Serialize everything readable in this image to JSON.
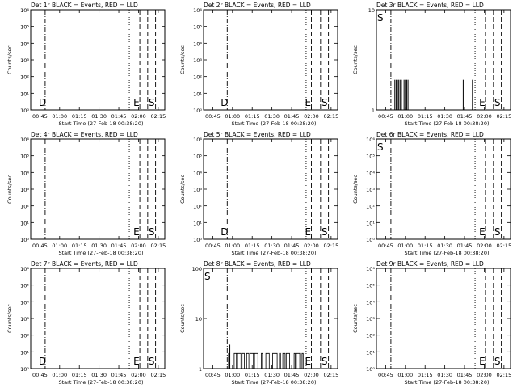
{
  "page": {
    "background": "#ffffff",
    "foreground": "#000000",
    "lld_color": "#ff0000"
  },
  "chart_data": [
    {
      "type": "line",
      "title": "Det 1r BLACK = Events, RED = LLD",
      "xlabel": "Start Time (27-Feb-18 00:38:20)",
      "ylabel": "Counts/sec",
      "x_ticks": [
        "00:45",
        "01:00",
        "01:15",
        "01:30",
        "01:45",
        "02:00",
        "02:15"
      ],
      "xlim": [
        "00:38",
        "02:20"
      ],
      "yscale": "log",
      "ylim": [
        1,
        1000000
      ],
      "y_ticks": [
        "10⁰",
        "10¹",
        "10²",
        "10³",
        "10⁴",
        "10⁵",
        "10⁶"
      ],
      "markers": [
        {
          "label": "D",
          "x": "00:49",
          "style": "dashdot"
        },
        {
          "label": "",
          "x": "01:53",
          "style": "dotted"
        },
        {
          "label": "E",
          "x": "02:01",
          "style": "dashed"
        },
        {
          "label": "S",
          "x": "02:07",
          "style": "dashed"
        },
        {
          "label": "",
          "x": "02:13",
          "style": "dashed"
        }
      ],
      "series": []
    },
    {
      "type": "line",
      "title": "Det 2r BLACK = Events, RED = LLD",
      "xlabel": "Start Time (27-Feb-18 00:38:20)",
      "ylabel": "Counts/sec",
      "x_ticks": [
        "00:45",
        "01:00",
        "01:15",
        "01:30",
        "01:45",
        "02:00",
        "02:15"
      ],
      "xlim": [
        "00:38",
        "02:20"
      ],
      "yscale": "log",
      "ylim": [
        1,
        1000000
      ],
      "y_ticks": [
        "10⁰",
        "10¹",
        "10²",
        "10³",
        "10⁴",
        "10⁵",
        "10⁶"
      ],
      "markers": [
        {
          "label": "D",
          "x": "00:56",
          "style": "dashdot"
        },
        {
          "label": "",
          "x": "01:56",
          "style": "dotted"
        },
        {
          "label": "E",
          "x": "02:00",
          "style": "dashed"
        },
        {
          "label": "S",
          "x": "02:07",
          "style": "dashed"
        },
        {
          "label": "",
          "x": "02:13",
          "style": "dashed"
        }
      ],
      "series": []
    },
    {
      "type": "line",
      "title": "Det 3r BLACK = Events, RED = LLD",
      "xlabel": "Start Time (27-Feb-18 00:38:20)",
      "ylabel": "Counts/sec",
      "x_ticks": [
        "00:45",
        "01:00",
        "01:15",
        "01:30",
        "01:45",
        "02:00",
        "02:15"
      ],
      "xlim": [
        "00:38",
        "02:20"
      ],
      "yscale": "log",
      "ylim": [
        1,
        10
      ],
      "y_ticks": [
        "1",
        "10"
      ],
      "markers": [
        {
          "label": "S",
          "x": "00:38",
          "style": "none"
        },
        {
          "label": "",
          "x": "00:49",
          "style": "dashdot"
        },
        {
          "label": "",
          "x": "01:53",
          "style": "dotted"
        },
        {
          "label": "E",
          "x": "02:01",
          "style": "dashed"
        },
        {
          "label": "S",
          "x": "02:07",
          "style": "dashed"
        },
        {
          "label": "",
          "x": "02:13",
          "style": "dashed"
        }
      ],
      "series": [
        {
          "spikes": [
            [
              "00:52",
              2
            ],
            [
              "00:53",
              2
            ],
            [
              "00:54",
              2
            ],
            [
              "00:55",
              2
            ],
            [
              "00:56",
              2
            ],
            [
              "00:57",
              2
            ],
            [
              "00:59",
              2
            ],
            [
              "01:00",
              2
            ],
            [
              "01:01",
              2
            ],
            [
              "01:02",
              2
            ],
            [
              "01:44",
              2
            ],
            [
              "01:51",
              2
            ]
          ]
        }
      ]
    },
    {
      "type": "line",
      "title": "Det 4r BLACK = Events, RED = LLD",
      "xlabel": "Start Time (27-Feb-18 00:38:20)",
      "ylabel": "Counts/sec",
      "x_ticks": [
        "00:45",
        "01:00",
        "01:15",
        "01:30",
        "01:45",
        "02:00",
        "02:15"
      ],
      "xlim": [
        "00:38",
        "02:20"
      ],
      "yscale": "log",
      "ylim": [
        1,
        1000000
      ],
      "y_ticks": [
        "10⁰",
        "10¹",
        "10²",
        "10³",
        "10⁴",
        "10⁵",
        "10⁶"
      ],
      "markers": [
        {
          "label": "",
          "x": "00:49",
          "style": "dashdot"
        },
        {
          "label": "",
          "x": "01:53",
          "style": "dotted"
        },
        {
          "label": "E",
          "x": "02:01",
          "style": "dashed"
        },
        {
          "label": "S",
          "x": "02:07",
          "style": "dashed"
        },
        {
          "label": "",
          "x": "02:13",
          "style": "dashed"
        }
      ],
      "series": []
    },
    {
      "type": "line",
      "title": "Det 5r BLACK = Events, RED = LLD",
      "xlabel": "Start Time (27-Feb-18 00:38:20)",
      "ylabel": "Counts/sec",
      "x_ticks": [
        "00:45",
        "01:00",
        "01:15",
        "01:30",
        "01:45",
        "02:00",
        "02:15"
      ],
      "xlim": [
        "00:38",
        "02:20"
      ],
      "yscale": "log",
      "ylim": [
        1,
        1000000
      ],
      "y_ticks": [
        "10⁰",
        "10¹",
        "10²",
        "10³",
        "10⁴",
        "10⁵",
        "10⁶"
      ],
      "markers": [
        {
          "label": "D",
          "x": "00:56",
          "style": "dashdot"
        },
        {
          "label": "",
          "x": "01:56",
          "style": "dotted"
        },
        {
          "label": "E",
          "x": "02:00",
          "style": "dashed"
        },
        {
          "label": "S",
          "x": "02:07",
          "style": "dashed"
        },
        {
          "label": "",
          "x": "02:13",
          "style": "dashed"
        }
      ],
      "series": []
    },
    {
      "type": "line",
      "title": "Det 6r BLACK = Events, RED = LLD",
      "xlabel": "Start Time (27-Feb-18 00:38:20)",
      "ylabel": "Counts/sec",
      "x_ticks": [
        "00:45",
        "01:00",
        "01:15",
        "01:30",
        "01:45",
        "02:00",
        "02:15"
      ],
      "xlim": [
        "00:38",
        "02:20"
      ],
      "yscale": "log",
      "ylim": [
        1,
        1000000
      ],
      "y_ticks": [
        "10⁰",
        "10¹",
        "10²",
        "10³",
        "10⁴",
        "10⁵",
        "10⁶"
      ],
      "markers": [
        {
          "label": "S",
          "x": "00:38",
          "style": "none"
        },
        {
          "label": "",
          "x": "00:49",
          "style": "dashdot"
        },
        {
          "label": "",
          "x": "01:53",
          "style": "dotted"
        },
        {
          "label": "E",
          "x": "02:01",
          "style": "dashed"
        },
        {
          "label": "S",
          "x": "02:07",
          "style": "dashed"
        },
        {
          "label": "",
          "x": "02:13",
          "style": "dashed"
        }
      ],
      "series": []
    },
    {
      "type": "line",
      "title": "Det 7r BLACK = Events, RED = LLD",
      "xlabel": "Start Time (27-Feb-18 00:38:20)",
      "ylabel": "Counts/sec",
      "x_ticks": [
        "00:45",
        "01:00",
        "01:15",
        "01:30",
        "01:45",
        "02:00",
        "02:15"
      ],
      "xlim": [
        "00:38",
        "02:20"
      ],
      "yscale": "log",
      "ylim": [
        1,
        1000000
      ],
      "y_ticks": [
        "10⁰",
        "10¹",
        "10²",
        "10³",
        "10⁴",
        "10⁵",
        "10⁶"
      ],
      "markers": [
        {
          "label": "D",
          "x": "00:49",
          "style": "dashdot"
        },
        {
          "label": "",
          "x": "01:53",
          "style": "dotted"
        },
        {
          "label": "E",
          "x": "02:01",
          "style": "dashed"
        },
        {
          "label": "S",
          "x": "02:07",
          "style": "dashed"
        },
        {
          "label": "",
          "x": "02:13",
          "style": "dashed"
        }
      ],
      "series": []
    },
    {
      "type": "line",
      "title": "Det 8r BLACK = Events, RED = LLD",
      "xlabel": "Start Time (27-Feb-18 00:38:20)",
      "ylabel": "Counts/sec",
      "x_ticks": [
        "00:45",
        "01:00",
        "01:15",
        "01:30",
        "01:45",
        "02:00",
        "02:15"
      ],
      "xlim": [
        "00:38",
        "02:20"
      ],
      "yscale": "log",
      "ylim": [
        1,
        100
      ],
      "y_ticks": [
        "1",
        "10",
        "100"
      ],
      "markers": [
        {
          "label": "S",
          "x": "00:38",
          "style": "none"
        },
        {
          "label": "",
          "x": "00:56",
          "style": "dashdot"
        },
        {
          "label": "",
          "x": "01:56",
          "style": "dotted"
        },
        {
          "label": "E",
          "x": "02:00",
          "style": "dashed"
        },
        {
          "label": "S",
          "x": "02:07",
          "style": "dashed"
        },
        {
          "label": "",
          "x": "02:13",
          "style": "dashed"
        }
      ],
      "series": [
        {
          "noise": {
            "x_range": [
              "00:57",
              "01:56"
            ],
            "levels": [
              1,
              2
            ],
            "peak": [
              "00:58",
              3
            ]
          }
        }
      ]
    },
    {
      "type": "line",
      "title": "Det 9r BLACK = Events, RED = LLD",
      "xlabel": "Start Time (27-Feb-18 00:38:20)",
      "ylabel": "Counts/sec",
      "x_ticks": [
        "00:45",
        "01:00",
        "01:15",
        "01:30",
        "01:45",
        "02:00",
        "02:15"
      ],
      "xlim": [
        "00:38",
        "02:20"
      ],
      "yscale": "log",
      "ylim": [
        1,
        1000000
      ],
      "y_ticks": [
        "10⁰",
        "10¹",
        "10²",
        "10³",
        "10⁴",
        "10⁵",
        "10⁶"
      ],
      "markers": [
        {
          "label": "",
          "x": "00:49",
          "style": "dashdot"
        },
        {
          "label": "",
          "x": "01:53",
          "style": "dotted"
        },
        {
          "label": "E",
          "x": "02:01",
          "style": "dashed"
        },
        {
          "label": "S",
          "x": "02:07",
          "style": "dashed"
        },
        {
          "label": "",
          "x": "02:13",
          "style": "dashed"
        }
      ],
      "series": []
    }
  ]
}
